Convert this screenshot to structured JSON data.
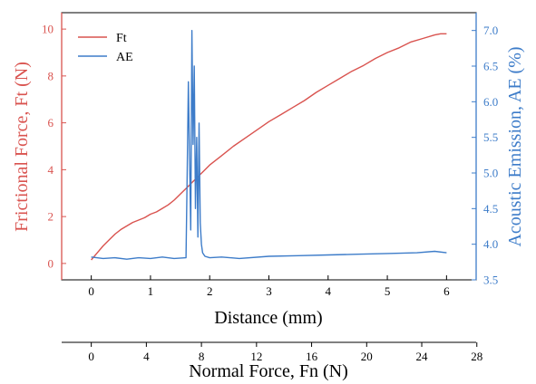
{
  "chart_data": {
    "type": "line",
    "grid": false,
    "legend_position": "top-left",
    "xlabel": "Distance (mm)",
    "x2label": "Normal Force, Fn (N)",
    "ylabel_left": "Frictional Force, Ft (N)",
    "ylabel_right": "Acoustic Emission, AE (%)",
    "xlim": [
      -0.5,
      6.5
    ],
    "ylim_left": [
      -0.7,
      10.7
    ],
    "ylim_right": [
      3.5,
      7.25
    ],
    "x_ticks": [
      "0",
      "1",
      "2",
      "3",
      "4",
      "5",
      "6"
    ],
    "y_left_ticks": [
      "0",
      "2",
      "4",
      "6",
      "8",
      "10"
    ],
    "y_right_ticks": [
      "3.5",
      "4.0",
      "4.5",
      "5.0",
      "5.5",
      "6.0",
      "6.5",
      "7.0"
    ],
    "x2_ticks": [
      "0",
      "4",
      "8",
      "12",
      "16",
      "20",
      "24",
      "28"
    ],
    "x2_per_x": 4.3,
    "colors": {
      "ft": "#d9534f",
      "ae": "#3d7cc9",
      "axis_left": "#d9534f",
      "axis_right": "#3d7cc9",
      "axis": "#000000"
    },
    "series": [
      {
        "name": "Ft",
        "axis": "left",
        "x": [
          0,
          0.1,
          0.2,
          0.3,
          0.4,
          0.5,
          0.6,
          0.7,
          0.8,
          0.9,
          1.0,
          1.1,
          1.2,
          1.3,
          1.4,
          1.5,
          1.6,
          1.7,
          1.8,
          1.9,
          2.0,
          2.2,
          2.4,
          2.6,
          2.8,
          3.0,
          3.2,
          3.4,
          3.6,
          3.8,
          4.0,
          4.2,
          4.4,
          4.6,
          4.8,
          5.0,
          5.2,
          5.4,
          5.6,
          5.8,
          5.9,
          6.0
        ],
        "values": [
          0.15,
          0.45,
          0.75,
          1.0,
          1.25,
          1.45,
          1.6,
          1.75,
          1.85,
          1.95,
          2.1,
          2.2,
          2.35,
          2.5,
          2.7,
          2.95,
          3.2,
          3.45,
          3.7,
          3.95,
          4.2,
          4.6,
          5.0,
          5.35,
          5.7,
          6.05,
          6.35,
          6.65,
          6.95,
          7.3,
          7.6,
          7.9,
          8.2,
          8.45,
          8.75,
          9.0,
          9.2,
          9.45,
          9.6,
          9.75,
          9.8,
          9.8
        ]
      },
      {
        "name": "AE",
        "axis": "right",
        "x": [
          0,
          0.2,
          0.4,
          0.6,
          0.8,
          1.0,
          1.2,
          1.4,
          1.6,
          1.62,
          1.64,
          1.66,
          1.68,
          1.7,
          1.72,
          1.74,
          1.76,
          1.78,
          1.8,
          1.82,
          1.84,
          1.86,
          1.88,
          1.92,
          2.0,
          2.2,
          2.5,
          3.0,
          3.5,
          4.0,
          4.5,
          5.0,
          5.5,
          5.8,
          6.0
        ],
        "values": [
          3.82,
          3.8,
          3.81,
          3.79,
          3.81,
          3.8,
          3.82,
          3.8,
          3.81,
          5.0,
          6.28,
          5.2,
          4.2,
          7.0,
          5.4,
          6.5,
          4.5,
          5.5,
          4.1,
          5.7,
          4.3,
          4.0,
          3.88,
          3.83,
          3.81,
          3.82,
          3.8,
          3.83,
          3.84,
          3.85,
          3.86,
          3.87,
          3.88,
          3.9,
          3.88
        ]
      }
    ]
  }
}
